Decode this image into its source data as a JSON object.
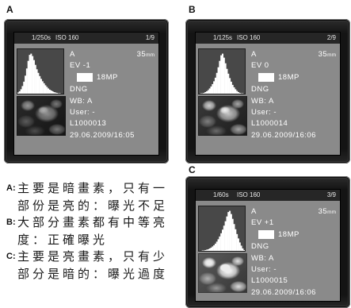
{
  "panels": [
    {
      "label": "A",
      "screen": {
        "shutter": "1/250s",
        "iso": "ISO 160",
        "frame": "1/9",
        "mode": "A",
        "focal_length": "35",
        "focal_unit": "mm",
        "ev": "EV -1",
        "resolution": "18MP",
        "format": "DNG",
        "white_balance": "WB: A",
        "user": "User: -",
        "file": "L1000013",
        "datetime": "29.06.2009/16:05",
        "histogram_bins": [
          3,
          6,
          11,
          19,
          30,
          45,
          63,
          82,
          97,
          100,
          94,
          84,
          72,
          61,
          52,
          44,
          37,
          31,
          26,
          21,
          17,
          13,
          10,
          8,
          6,
          4,
          3,
          2,
          1,
          1,
          0,
          0
        ]
      }
    },
    {
      "label": "B",
      "screen": {
        "shutter": "1/125s",
        "iso": "ISO 160",
        "frame": "2/9",
        "mode": "A",
        "focal_length": "35",
        "focal_unit": "mm",
        "ev": "EV 0",
        "resolution": "18MP",
        "format": "DNG",
        "white_balance": "WB: A",
        "user": "User: -",
        "file": "L1000014",
        "datetime": "29.06.2009/16:06",
        "histogram_bins": [
          0,
          1,
          1,
          2,
          4,
          6,
          9,
          13,
          18,
          24,
          31,
          40,
          52,
          66,
          82,
          96,
          100,
          90,
          76,
          62,
          50,
          39,
          30,
          22,
          16,
          11,
          7,
          4,
          2,
          1,
          1,
          0
        ]
      }
    },
    {
      "label": "C",
      "screen": {
        "shutter": "1/60s",
        "iso": "ISO 160",
        "frame": "3/9",
        "mode": "A",
        "focal_length": "35",
        "focal_unit": "mm",
        "ev": "EV +1",
        "resolution": "18MP",
        "format": "DNG",
        "white_balance": "WB: A",
        "user": "User: -",
        "file": "L1000015",
        "datetime": "29.06.2009/16:06",
        "histogram_bins": [
          0,
          0,
          1,
          1,
          2,
          3,
          4,
          6,
          8,
          11,
          14,
          18,
          23,
          29,
          36,
          44,
          53,
          63,
          74,
          86,
          97,
          100,
          92,
          80,
          67,
          54,
          42,
          31,
          21,
          13,
          6,
          2
        ]
      }
    }
  ],
  "legend": [
    {
      "key": "A:",
      "lines": [
        "主要是暗畫素，只有一",
        "部份是亮的：曝光不足"
      ]
    },
    {
      "key": "B:",
      "lines": [
        "大部分畫素都有中等亮",
        "度：正確曝光"
      ]
    },
    {
      "key": "C:",
      "lines": [
        "主要是亮畫素，只有少",
        "部分是暗的：曝光過度"
      ]
    }
  ],
  "colors": {
    "bezel": "#141414",
    "display": "#8a8a8a",
    "topbar": "#262626",
    "histogram_bg": "#484848",
    "histogram_fill": "#ffffff",
    "screen_text": "#ffffff",
    "legend_text": "#1a1a1a"
  }
}
